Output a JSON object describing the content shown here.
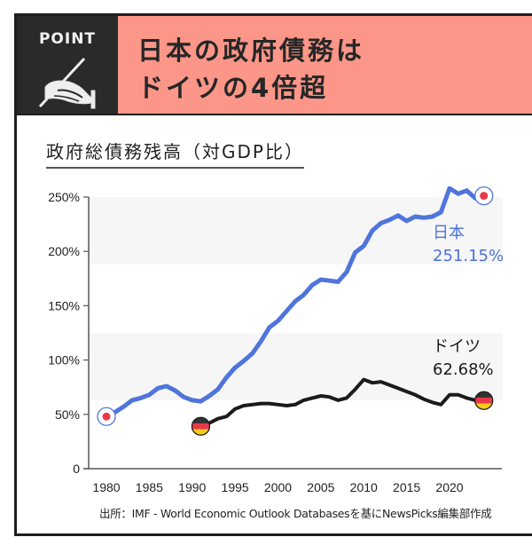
{
  "header": {
    "badge": "POINT",
    "badge_icon": "quill-hand-icon",
    "headline_line1": "日本の政府債務は",
    "headline_line2": "ドイツの4倍超"
  },
  "colors": {
    "japan": "#4f74dc",
    "germany": "#1b1b1b",
    "headline_bg": "#fb9688",
    "badge_bg": "#2a2a2a",
    "band": "#f6f6f6"
  },
  "annotations": {
    "japan_name": "日本",
    "japan_value": "251.15%",
    "germany_name": "ドイツ",
    "germany_value": "62.68%"
  },
  "source": "出所：IMF - World Economic Outlook Databasesを基にNewsPicks編集部作成",
  "chart_data": {
    "type": "line",
    "title": "政府総債務残高（対GDP比）",
    "xlabel": "",
    "ylabel": "",
    "xlim": [
      1977.9,
      2026
    ],
    "ylim": [
      0,
      250
    ],
    "x_ticks": [
      1980,
      1985,
      1990,
      1995,
      2000,
      2005,
      2010,
      2015,
      2020
    ],
    "y_ticks": [
      {
        "value": 0,
        "label": "0"
      },
      {
        "value": 50,
        "label": "50%"
      },
      {
        "value": 100,
        "label": "100%"
      },
      {
        "value": 150,
        "label": "150%"
      },
      {
        "value": 200,
        "label": "200%"
      },
      {
        "value": 250,
        "label": "250%"
      }
    ],
    "bands": [
      [
        188,
        250
      ],
      [
        63,
        125
      ]
    ],
    "grid": false,
    "legend": "direct-labels-right",
    "series": [
      {
        "name": "日本",
        "marker": "japan-flag",
        "x": [
          1980,
          1981,
          1982,
          1983,
          1984,
          1985,
          1986,
          1987,
          1988,
          1989,
          1990,
          1991,
          1992,
          1993,
          1994,
          1995,
          1996,
          1997,
          1998,
          1999,
          2000,
          2001,
          2002,
          2003,
          2004,
          2005,
          2006,
          2007,
          2008,
          2009,
          2010,
          2011,
          2012,
          2013,
          2014,
          2015,
          2016,
          2017,
          2018,
          2019,
          2020,
          2021,
          2022,
          2023,
          2024
        ],
        "values": [
          48,
          52,
          57,
          63,
          65,
          68,
          74,
          76,
          72,
          66,
          63,
          62,
          67,
          73,
          84,
          93,
          99,
          106,
          117,
          130,
          136,
          145,
          154,
          160,
          169,
          174,
          173,
          172,
          181,
          199,
          205,
          219,
          226,
          229,
          233,
          228,
          232,
          231,
          232,
          236,
          258,
          253,
          256,
          249,
          251.15
        ]
      },
      {
        "name": "ドイツ",
        "marker": "germany-flag",
        "x": [
          1991,
          1992,
          1993,
          1994,
          1995,
          1996,
          1997,
          1998,
          1999,
          2000,
          2001,
          2002,
          2003,
          2004,
          2005,
          2006,
          2007,
          2008,
          2009,
          2010,
          2011,
          2012,
          2013,
          2014,
          2015,
          2016,
          2017,
          2018,
          2019,
          2020,
          2021,
          2022,
          2023,
          2024
        ],
        "values": [
          39,
          42,
          46,
          48,
          55,
          58,
          59,
          60,
          60,
          59,
          58,
          59,
          63,
          65,
          67,
          66,
          63,
          65,
          73,
          82,
          79,
          80,
          77,
          74,
          71,
          68,
          64,
          61,
          59,
          68,
          68,
          65,
          63,
          62.68
        ]
      }
    ]
  }
}
